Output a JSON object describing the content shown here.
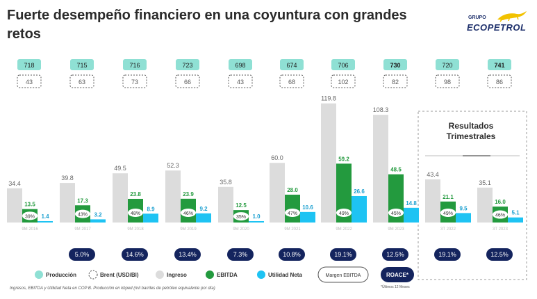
{
  "slide": {
    "title": "Fuerte desempeño financiero en una coyuntura con grandes retos",
    "logo_top": "GRUPO",
    "logo_brand": "ECOPETROL",
    "quarter_title_line1": "Resultados",
    "quarter_title_line2": "Trimestrales",
    "footnote": "Ingresos, EBITDA y Utilidad Neta en COP B. Producción en kbped (mil barriles de petróleo equivalente por día)",
    "roace_note": "*Últimos 12 Meses"
  },
  "colors": {
    "ingreso": "#dcdcdc",
    "ebitda": "#239a3e",
    "utilidad": "#1ec3f3",
    "produccion_fill": "#8fe0d4",
    "roace_fill": "#14245e",
    "text": "#333333",
    "dash": "#aaaaaa"
  },
  "chart_data": {
    "type": "bar",
    "categories": [
      "9M 2016",
      "9M 2017",
      "9M 2018",
      "9M 2019",
      "9M 2020",
      "9M 2021",
      "9M 2022",
      "9M 2023",
      "3T 2022",
      "3T 2023"
    ],
    "series": [
      {
        "name": "Ingreso",
        "values": [
          34.4,
          39.8,
          49.5,
          52.3,
          35.8,
          60.0,
          119.8,
          108.3,
          43.4,
          35.1
        ],
        "labels": [
          "34.4",
          "39.8",
          "49.5",
          "52.3",
          "35.8",
          "60.0",
          "119.8",
          "108.3",
          "43.4",
          "35.1"
        ]
      },
      {
        "name": "EBITDA",
        "values": [
          13.5,
          17.3,
          23.8,
          23.9,
          12.5,
          28.0,
          59.2,
          48.5,
          21.1,
          16.0
        ],
        "labels": [
          "13.5",
          "17.3",
          "23.8",
          "23.9",
          "12.5",
          "28.0",
          "59.2",
          "48.5",
          "21.1",
          "16.0"
        ]
      },
      {
        "name": "Utilidad Neta",
        "values": [
          1.4,
          3.2,
          8.9,
          9.2,
          1.0,
          10.6,
          26.6,
          14.8,
          9.5,
          5.1
        ],
        "labels": [
          "1.4",
          "3.2",
          "8.9",
          "9.2",
          "1.0",
          "10.6",
          "26.6",
          "14.8",
          "9.5",
          "5.1"
        ]
      }
    ],
    "margen_ebitda": [
      "39%",
      "43%",
      "48%",
      "46%",
      "35%",
      "47%",
      "49%",
      "45%",
      "49%",
      "46%"
    ],
    "produccion": [
      "718",
      "715",
      "716",
      "723",
      "698",
      "674",
      "706",
      "730",
      "720",
      "741"
    ],
    "produccion_bold": [
      false,
      false,
      false,
      false,
      false,
      false,
      false,
      true,
      false,
      true
    ],
    "brent": [
      "43",
      "63",
      "73",
      "66",
      "43",
      "68",
      "102",
      "82",
      "98",
      "86"
    ],
    "roace": [
      "5.0%",
      "14.6%",
      "13.4%",
      "7.3%",
      "10.8%",
      "19.1%",
      "12.5%",
      "19.1%",
      "12.5%"
    ],
    "roace_positions": [
      1,
      2,
      3,
      4,
      5,
      6,
      7,
      8,
      9
    ],
    "legend": [
      "Producción",
      "Brent (USD/Bl)",
      "Ingreso",
      "EBITDA",
      "Utilidad Neta",
      "Margen EBITDA",
      "ROACE*"
    ],
    "ylim": [
      0,
      125
    ]
  }
}
